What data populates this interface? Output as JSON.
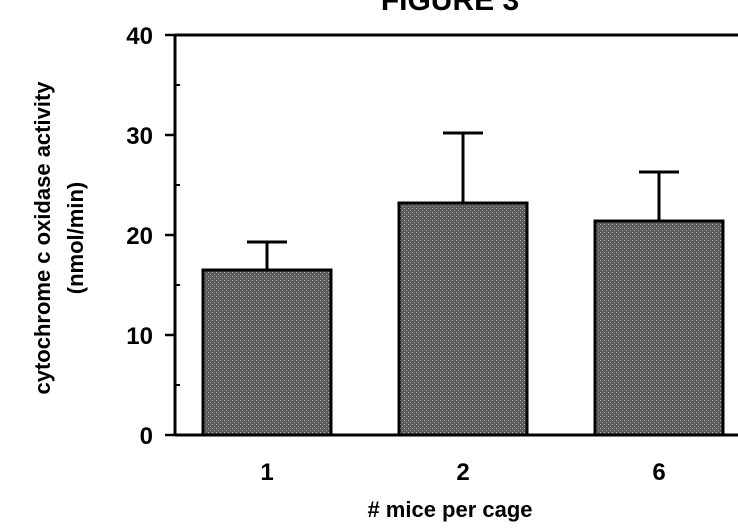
{
  "chart_data": {
    "type": "bar",
    "title": "FIGURE 3",
    "xlabel": "# mice per cage",
    "ylabel": "cytochrome c oxidase activity",
    "ylabel_units": "(nmol/min)",
    "categories": [
      "1",
      "2",
      "6"
    ],
    "values": [
      16.5,
      23.2,
      21.4
    ],
    "error_upper": [
      19.3,
      30.2,
      26.3
    ],
    "ylim": [
      0,
      40
    ],
    "yticks": [
      0,
      10,
      20,
      30,
      40
    ],
    "grid": false,
    "legend": "none",
    "colors": {
      "bar_fill": "#8c8c8c",
      "bar_stroke": "#000000",
      "axis": "#000000"
    }
  }
}
